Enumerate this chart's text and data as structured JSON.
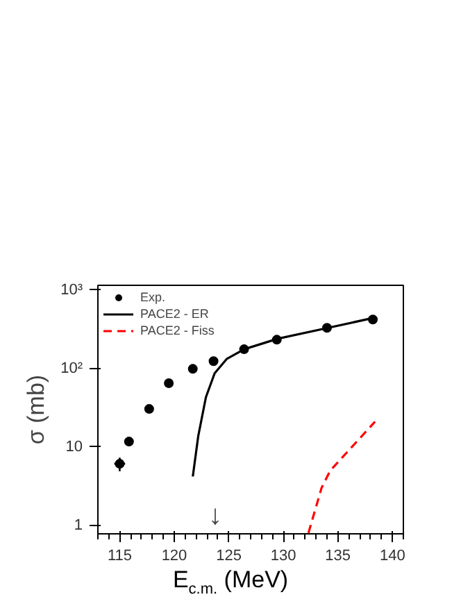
{
  "chart_data": {
    "type": "scatter",
    "xlabel": "E$_{c.m.}$ (MeV)",
    "ylabel": "σ (mb)",
    "log": "y",
    "xlim": [
      113,
      141
    ],
    "xticks": [
      115,
      120,
      125,
      130,
      135,
      140
    ],
    "ylim": [
      0.78,
      1150
    ],
    "yticks": [
      1,
      10,
      {
        "value": 100,
        "label": "10²"
      },
      {
        "value": 1000,
        "label": "10³"
      }
    ],
    "legend": "top left",
    "grid": false,
    "series": [
      {
        "name": "Exp.",
        "marker": "circle",
        "color": "#000000",
        "x": [
          115,
          115.85,
          117.7,
          119.5,
          121.7,
          123.6,
          126.4,
          129.4,
          134,
          138.2
        ],
        "values": [
          6.1,
          11.7,
          30.5,
          65,
          99,
          124,
          176,
          233,
          330,
          422
        ],
        "errors": [
          1.2,
          1.5,
          null,
          null,
          null,
          null,
          null,
          null,
          null,
          null
        ],
        "xerrors": [
          0.5,
          null,
          null,
          null,
          null,
          null,
          null,
          null,
          null,
          null
        ]
      },
      {
        "name": "PACE2 - ER",
        "type": "line",
        "line_style": "solid",
        "color": "#000000",
        "x": [
          121.7,
          122.2,
          122.9,
          123.7,
          124.8,
          126.4,
          129.5,
          134.1,
          138.2
        ],
        "values": [
          4.2,
          13.8,
          43,
          87,
          132,
          176,
          240,
          330,
          440
        ]
      },
      {
        "name": "PACE2 - Fiss",
        "type": "line",
        "line_style": "dashed",
        "color": "#ff0000",
        "x": [
          132.3,
          133.5,
          134.3,
          138.4
        ],
        "values": [
          0.8,
          3.0,
          5,
          21
        ]
      }
    ],
    "annotations": [
      "↓"
    ]
  }
}
